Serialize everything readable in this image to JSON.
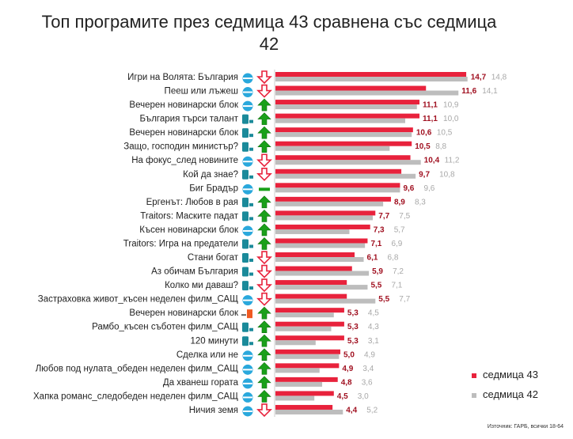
{
  "chart_data": {
    "type": "bar",
    "orientation": "horizontal",
    "title": "Топ програмите през седмица 43 сравнена със седмица 42",
    "categories": [
      "Игри на Волята: България",
      "Пееш или лъжеш",
      "Вечерен новинарски блок",
      "България търси талант",
      "Вечерен новинарски блок",
      "Защо, господин министър?",
      "На фокус_след новините",
      "Кой да знае?",
      "Биг Брадър",
      "Ергенът: Любов в рая",
      "Traitors: Маските падат",
      "Късен новинарски блок",
      "Traitors: Игра на предатели",
      "Стани богат",
      "Аз обичам България",
      "Колко ми даваш?",
      "Застраховка живот_късен неделен филм_САЩ",
      "Вечерен новинарски блок",
      "Рамбо_късен съботен филм_САЩ",
      "120 минути",
      "Сделка или не",
      "Любов под нулата_обеден неделен филм_САЩ",
      "Да хванеш гората",
      "Хапка романс_следобеден неделен филм_САЩ",
      "Ничия земя"
    ],
    "channels": [
      "nova",
      "nova",
      "nova",
      "btv",
      "btv",
      "btv",
      "nova",
      "btv",
      "nova",
      "btv",
      "btv",
      "nova",
      "btv",
      "btv",
      "btv",
      "btv",
      "nova",
      "bnt1",
      "btv",
      "btv",
      "nova",
      "nova",
      "nova",
      "nova",
      "nova"
    ],
    "trend": [
      "down",
      "down",
      "up",
      "up",
      "up",
      "up",
      "down",
      "down",
      "flat",
      "up",
      "up",
      "up",
      "up",
      "down",
      "down",
      "down",
      "down",
      "up",
      "up",
      "up",
      "up",
      "up",
      "up",
      "up",
      "down"
    ],
    "series": [
      {
        "name": "седмица 43",
        "color": "#e8223c",
        "label_color": "#a01020",
        "values": [
          14.7,
          11.6,
          11.1,
          11.1,
          10.6,
          10.5,
          10.4,
          9.7,
          9.6,
          8.9,
          7.7,
          7.3,
          7.1,
          6.1,
          5.9,
          5.5,
          5.5,
          5.3,
          5.3,
          5.3,
          5.0,
          4.9,
          4.8,
          4.5,
          4.4
        ]
      },
      {
        "name": "седмица 42",
        "color": "#bdbdbd",
        "label_color": "#a8a8a8",
        "values": [
          14.8,
          14.1,
          10.9,
          10.0,
          10.5,
          8.8,
          11.2,
          10.8,
          9.6,
          8.3,
          7.5,
          5.7,
          6.9,
          6.8,
          7.2,
          7.1,
          7.7,
          4.5,
          4.3,
          3.1,
          4.9,
          3.4,
          3.6,
          3.0,
          5.2
        ]
      }
    ],
    "legend": "right",
    "xlim": [
      0,
      16
    ],
    "decimal_separator": ","
  },
  "source": "Източник: ГАРБ, всички 18-64"
}
